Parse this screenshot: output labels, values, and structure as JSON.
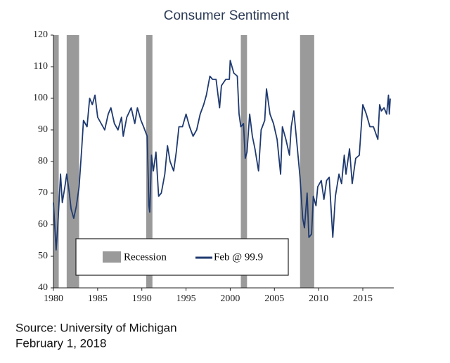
{
  "chart_data": {
    "type": "line",
    "title": "Consumer Sentiment",
    "source": "Source: University of Michigan",
    "date": "February 1, 2018",
    "xlim": [
      1980,
      2018.5
    ],
    "xticks": [
      1980,
      1985,
      1990,
      1995,
      2000,
      2005,
      2010,
      2015
    ],
    "ylim": [
      40,
      120
    ],
    "yticks": [
      40,
      50,
      60,
      70,
      80,
      90,
      100,
      110,
      120
    ],
    "recessions": {
      "name": "Recession",
      "color": "#9a9a9a",
      "ranges": [
        [
          1980.0,
          1980.6
        ],
        [
          1981.5,
          1982.9
        ],
        [
          1990.5,
          1991.2
        ],
        [
          2001.2,
          2001.9
        ],
        [
          2007.9,
          2009.5
        ]
      ]
    },
    "series": [
      {
        "name": "Feb @ 99.9",
        "color": "#1f3a70",
        "x": [
          1980.0,
          1980.3,
          1980.5,
          1980.8,
          1981.0,
          1981.3,
          1981.5,
          1981.8,
          1982.0,
          1982.3,
          1982.6,
          1982.9,
          1983.2,
          1983.4,
          1983.8,
          1984.1,
          1984.4,
          1984.7,
          1985.0,
          1985.4,
          1985.8,
          1986.2,
          1986.5,
          1986.9,
          1987.3,
          1987.7,
          1987.9,
          1988.3,
          1988.8,
          1989.2,
          1989.5,
          1989.9,
          1990.2,
          1990.6,
          1990.8,
          1990.9,
          1991.1,
          1991.3,
          1991.6,
          1991.9,
          1992.2,
          1992.6,
          1992.9,
          1993.2,
          1993.6,
          1993.9,
          1994.2,
          1994.6,
          1995.0,
          1995.4,
          1995.8,
          1996.2,
          1996.6,
          1997.0,
          1997.3,
          1997.7,
          1998.0,
          1998.4,
          1998.8,
          1999.0,
          1999.5,
          1999.9,
          2000.0,
          2000.4,
          2000.8,
          2001.0,
          2001.2,
          2001.5,
          2001.7,
          2001.9,
          2002.2,
          2002.5,
          2002.8,
          2003.2,
          2003.5,
          2003.9,
          2004.1,
          2004.5,
          2004.9,
          2005.3,
          2005.7,
          2005.9,
          2006.3,
          2006.7,
          2006.9,
          2007.2,
          2007.6,
          2007.9,
          2008.2,
          2008.4,
          2008.7,
          2008.9,
          2009.2,
          2009.4,
          2009.7,
          2009.9,
          2010.3,
          2010.6,
          2010.9,
          2011.2,
          2011.6,
          2011.9,
          2012.3,
          2012.6,
          2012.9,
          2013.1,
          2013.5,
          2013.8,
          2014.2,
          2014.6,
          2014.9,
          2015.0,
          2015.4,
          2015.8,
          2016.2,
          2016.7,
          2016.9,
          2017.1,
          2017.4,
          2017.7,
          2017.9,
          2018.0,
          2018.1
        ],
        "values": [
          67,
          52,
          60,
          76,
          67,
          72,
          76,
          70,
          65,
          62,
          66,
          72,
          84,
          93,
          91,
          100,
          98,
          101,
          94,
          92,
          90,
          95,
          97,
          92,
          90,
          94,
          88,
          94,
          97,
          92,
          97,
          93,
          91,
          88,
          66,
          64,
          82,
          77,
          83,
          69,
          70,
          76,
          85,
          80,
          77,
          83,
          91,
          91,
          95,
          91,
          88,
          90,
          95,
          98,
          101,
          107,
          106,
          106,
          97,
          104,
          106,
          106,
          112,
          108,
          107,
          95,
          91,
          92,
          81,
          83,
          95,
          88,
          84,
          77,
          90,
          93,
          103,
          95,
          92,
          87,
          76,
          91,
          87,
          82,
          91,
          96,
          84,
          75,
          62,
          59,
          70,
          56,
          57,
          69,
          66,
          72,
          74,
          68,
          74,
          75,
          56,
          69,
          76,
          73,
          82,
          76,
          84,
          73,
          81,
          82,
          94,
          98,
          95,
          91,
          91,
          87,
          98,
          96,
          97,
          95,
          101,
          95,
          99.9
        ]
      }
    ]
  }
}
